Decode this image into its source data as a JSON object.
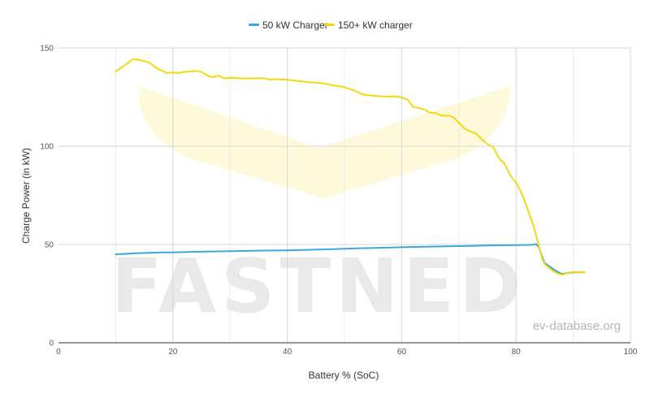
{
  "watermark": {
    "text": "FASTNED",
    "logo": "fastned-chevron-logo",
    "credit": "ev-database.org"
  },
  "chart_data": {
    "type": "line",
    "xlabel": "Battery % (SoC)",
    "ylabel": "Charge Power (in kW)",
    "xlim": [
      0,
      100
    ],
    "ylim": [
      0,
      150
    ],
    "x_ticks": [
      "0",
      "20",
      "40",
      "60",
      "80",
      "100"
    ],
    "y_ticks": [
      "0",
      "50",
      "100",
      "150"
    ],
    "grid": "vertical and horizontal",
    "legend_position": "top",
    "series": [
      {
        "name": "50 kW Charger",
        "color": "#3ba8d8",
        "points": [
          [
            10,
            45
          ],
          [
            12,
            45.3
          ],
          [
            14,
            45.6
          ],
          [
            16,
            45.8
          ],
          [
            18,
            46
          ],
          [
            20,
            46
          ],
          [
            24,
            46.3
          ],
          [
            28,
            46.5
          ],
          [
            32,
            46.7
          ],
          [
            36,
            46.9
          ],
          [
            40,
            47
          ],
          [
            44,
            47.3
          ],
          [
            48,
            47.6
          ],
          [
            52,
            48
          ],
          [
            56,
            48.3
          ],
          [
            60,
            48.6
          ],
          [
            64,
            48.9
          ],
          [
            68,
            49.1
          ],
          [
            72,
            49.3
          ],
          [
            76,
            49.6
          ],
          [
            80,
            49.7
          ],
          [
            82,
            49.8
          ],
          [
            83,
            49.9
          ],
          [
            83.5,
            50.2
          ],
          [
            84,
            48.5
          ],
          [
            84.5,
            44
          ],
          [
            85,
            40.5
          ],
          [
            86,
            38.5
          ],
          [
            87,
            36.5
          ],
          [
            88,
            35
          ],
          [
            89,
            35.4
          ],
          [
            90,
            35.8
          ],
          [
            91,
            35.9
          ],
          [
            92,
            35.8
          ]
        ]
      },
      {
        "name": "150+ kW charger",
        "color": "#f5d90e",
        "points": [
          [
            10,
            138
          ],
          [
            11,
            140
          ],
          [
            12,
            142
          ],
          [
            13,
            144.3
          ],
          [
            14,
            144
          ],
          [
            15,
            143.3
          ],
          [
            16,
            142.5
          ],
          [
            17,
            140
          ],
          [
            18,
            138.5
          ],
          [
            19,
            137.2
          ],
          [
            20,
            137.5
          ],
          [
            21,
            137.2
          ],
          [
            22,
            137.8
          ],
          [
            23,
            138
          ],
          [
            24,
            138.3
          ],
          [
            25,
            137.8
          ],
          [
            26,
            136
          ],
          [
            27,
            135
          ],
          [
            28,
            136
          ],
          [
            29,
            134.5
          ],
          [
            30,
            134.8
          ],
          [
            32,
            134.5
          ],
          [
            34,
            134.5
          ],
          [
            36,
            134.6
          ],
          [
            37,
            133.8
          ],
          [
            38,
            134.2
          ],
          [
            40,
            133.8
          ],
          [
            42,
            133.2
          ],
          [
            44,
            132.5
          ],
          [
            46,
            132.1
          ],
          [
            48,
            131
          ],
          [
            50,
            130
          ],
          [
            52,
            128
          ],
          [
            53,
            126.5
          ],
          [
            54,
            126
          ],
          [
            56,
            125.4
          ],
          [
            58,
            125.2
          ],
          [
            59,
            125.4
          ],
          [
            60,
            124.8
          ],
          [
            61,
            123.8
          ],
          [
            62,
            120
          ],
          [
            63,
            119.5
          ],
          [
            64,
            118.5
          ],
          [
            65,
            117
          ],
          [
            66,
            116.8
          ],
          [
            67,
            115.5
          ],
          [
            68,
            115.6
          ],
          [
            69,
            114.8
          ],
          [
            70,
            112
          ],
          [
            71,
            109
          ],
          [
            72,
            107.5
          ],
          [
            73,
            106.5
          ],
          [
            74,
            103.5
          ],
          [
            75,
            101
          ],
          [
            76,
            99.5
          ],
          [
            77,
            94
          ],
          [
            78,
            91
          ],
          [
            79,
            85
          ],
          [
            80,
            81.5
          ],
          [
            81,
            76
          ],
          [
            82,
            68
          ],
          [
            83,
            60
          ],
          [
            84,
            49
          ],
          [
            84.5,
            43
          ],
          [
            85,
            40
          ],
          [
            86,
            37.5
          ],
          [
            87,
            35.5
          ],
          [
            88,
            34.6
          ],
          [
            89,
            35.4
          ],
          [
            90,
            36
          ],
          [
            91,
            36
          ],
          [
            92,
            35.8
          ]
        ]
      }
    ]
  }
}
